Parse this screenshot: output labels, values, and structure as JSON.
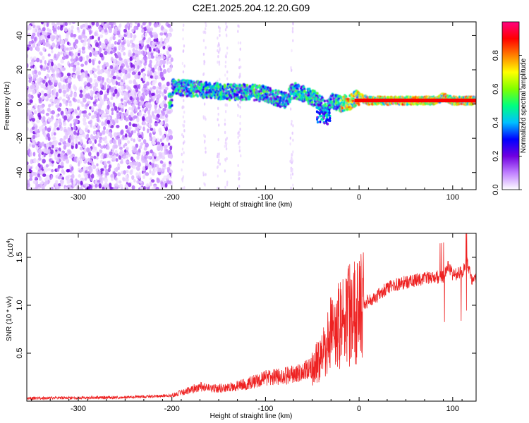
{
  "title": "C2E1.2025.204.12.20.G09",
  "chart_data": [
    {
      "type": "heatmap",
      "xlabel": "Height of straight line (km)",
      "ylabel": "Frequency (Hz)",
      "xlim": [
        -355,
        125
      ],
      "ylim": [
        -50,
        48
      ],
      "xticks": [
        -300,
        -200,
        -100,
        0,
        100
      ],
      "yticks": [
        -40,
        -20,
        0,
        20,
        40
      ],
      "colorbar": {
        "label": "Normalized spectral amplitude",
        "range": [
          0.0,
          1.0
        ],
        "ticks": [
          0.0,
          0.2,
          0.4,
          0.6,
          0.8
        ],
        "colormap": [
          "#ffffff",
          "#c080ff",
          "#7000e0",
          "#0000ff",
          "#00c0ff",
          "#00ff80",
          "#80ff00",
          "#ffff00",
          "#ff8000",
          "#ff0000",
          "#ff0080"
        ]
      },
      "noise_region_x": [
        -355,
        -200
      ],
      "ridge": {
        "x": [
          -200,
          -180,
          -160,
          -140,
          -120,
          -100,
          -90,
          -80,
          -70,
          -60,
          -50,
          -40,
          -35,
          -30,
          -20,
          -10,
          -5,
          0,
          10,
          30,
          60,
          80,
          90,
          100,
          125
        ],
        "frequency": [
          10,
          9,
          8,
          7,
          7,
          6,
          4,
          2,
          8,
          6,
          4,
          0,
          -4,
          2,
          0,
          1,
          3,
          4,
          2,
          2,
          2,
          2,
          4,
          2,
          2
        ]
      }
    },
    {
      "type": "line",
      "xlabel": "Height of straight line (km)",
      "ylabel": "SNR (10 * v/v)",
      "yunit_label": "(x10",
      "yunit_exponent": "4",
      "xlim": [
        -355,
        125
      ],
      "ylim": [
        0,
        17500
      ],
      "xticks": [
        -300,
        -200,
        -100,
        0,
        100
      ],
      "yticks": [
        5000,
        10000,
        15000
      ],
      "ytick_labels": [
        "0.5",
        "1.0",
        "1.5"
      ],
      "color": "#ee2222",
      "series": [
        {
          "x": [
            -355,
            -250,
            -200,
            -180,
            -170,
            -160,
            -140,
            -120,
            -100,
            -80,
            -60,
            -50,
            -40,
            -30,
            -20,
            -10,
            0,
            10,
            20,
            30,
            40,
            50,
            60,
            70,
            80,
            90,
            95,
            100,
            110,
            115,
            120,
            125
          ],
          "values": [
            300,
            400,
            600,
            1200,
            1500,
            1300,
            1400,
            1800,
            2400,
            2600,
            3000,
            3500,
            4500,
            7000,
            8000,
            9000,
            9500,
            10500,
            11000,
            11800,
            12200,
            12400,
            12600,
            12800,
            12900,
            13000,
            14000,
            13200,
            13400,
            14500,
            12800,
            13000
          ]
        }
      ]
    }
  ]
}
